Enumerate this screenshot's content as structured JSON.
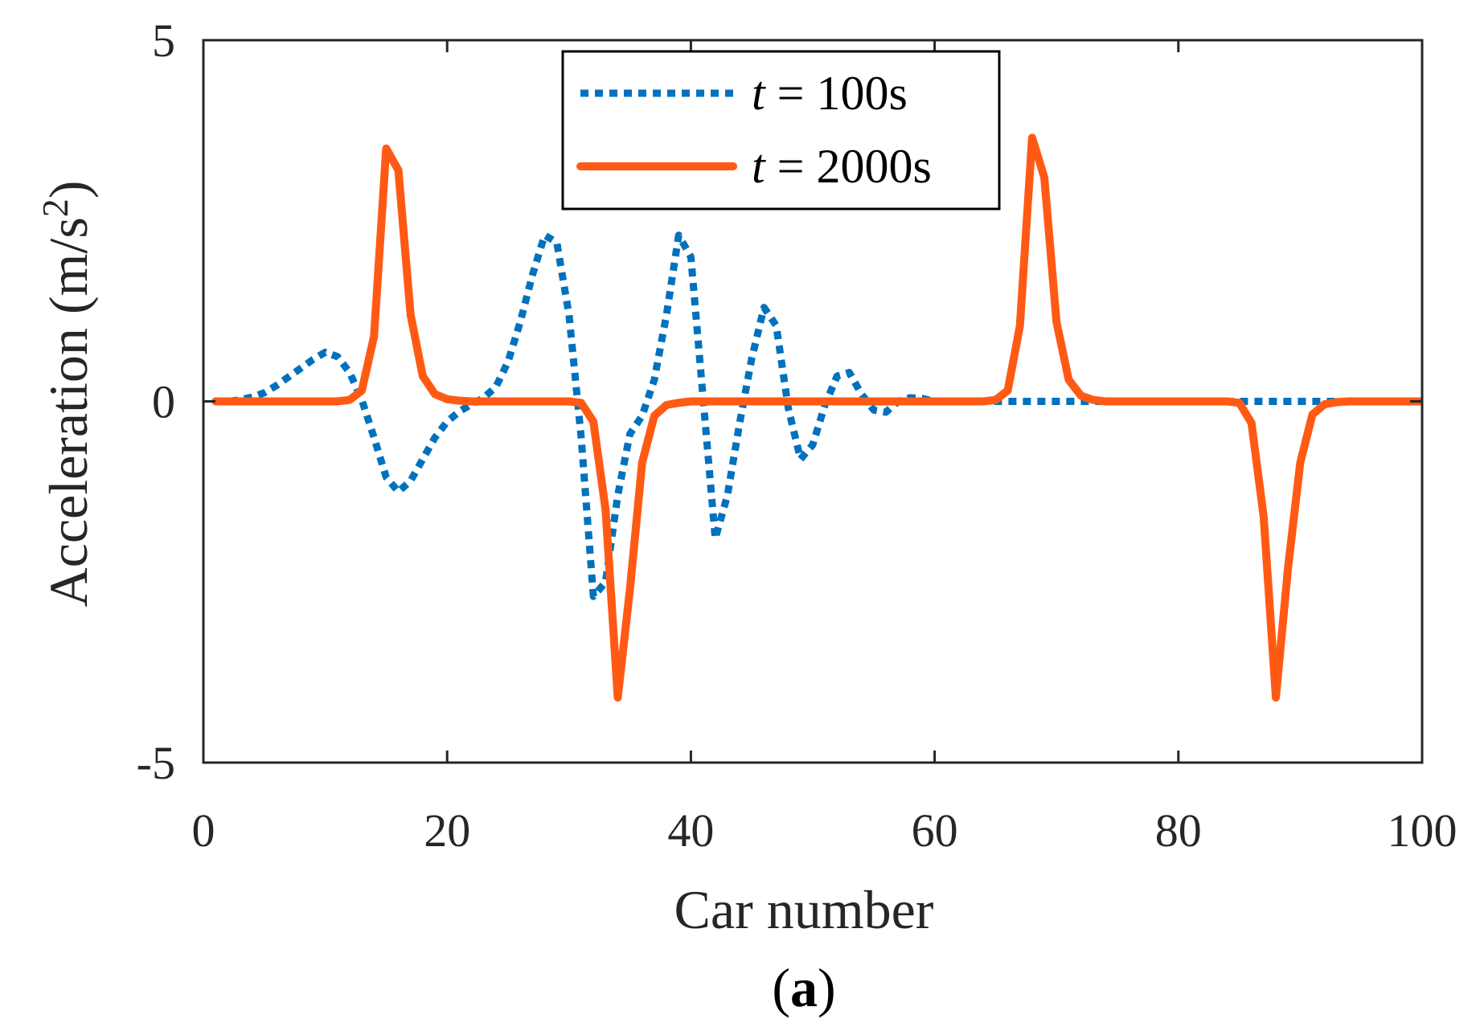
{
  "colors": {
    "series_1": "#0072BD",
    "series_2": "#FF5A14",
    "axis": "#262626"
  },
  "caption": {
    "open": "(",
    "letter": "a",
    "close": ")"
  },
  "chart_data": {
    "type": "line",
    "title": "",
    "xlabel": "Car number",
    "ylabel_main": "Acceleration (m/s",
    "ylabel_sup": "2",
    "ylabel_close": ")",
    "xlim": [
      0,
      100
    ],
    "ylim": [
      -5,
      5
    ],
    "xticks": [
      0,
      20,
      40,
      60,
      80,
      100
    ],
    "xtick_labels": [
      "0",
      "20",
      "40",
      "60",
      "80",
      "100"
    ],
    "yticks": [
      -5,
      0,
      5
    ],
    "ytick_labels": [
      "-5",
      "0",
      "5"
    ],
    "grid": false,
    "legend_position": "top-center",
    "series": [
      {
        "name": "t = 100s",
        "legend_italic": "t",
        "legend_rest": " = 100s",
        "style": "dotted",
        "x": [
          1,
          2,
          3,
          4,
          5,
          6,
          7,
          8,
          9,
          10,
          11,
          12,
          13,
          14,
          15,
          16,
          17,
          18,
          19,
          20,
          21,
          22,
          23,
          24,
          25,
          26,
          27,
          28,
          29,
          30,
          31,
          32,
          33,
          34,
          35,
          36,
          37,
          38,
          39,
          40,
          41,
          42,
          43,
          44,
          45,
          46,
          47,
          48,
          49,
          50,
          51,
          52,
          53,
          54,
          55,
          56,
          57,
          58,
          59,
          60,
          61,
          62,
          63,
          64,
          65,
          66,
          67,
          68,
          69,
          70,
          71,
          72,
          73,
          74,
          75,
          76,
          77,
          78,
          79,
          80,
          81,
          82,
          83,
          84,
          85,
          86,
          87,
          88,
          89,
          90,
          91,
          92,
          93,
          94,
          95,
          96,
          97,
          98,
          99,
          100
        ],
        "y": [
          0,
          0,
          0.02,
          0.06,
          0.12,
          0.22,
          0.34,
          0.46,
          0.58,
          0.68,
          0.62,
          0.4,
          0.02,
          -0.5,
          -1.05,
          -1.25,
          -1.1,
          -0.8,
          -0.5,
          -0.28,
          -0.14,
          -0.04,
          0.05,
          0.2,
          0.55,
          1.1,
          1.75,
          2.3,
          2.2,
          1.2,
          -0.5,
          -2.7,
          -2.5,
          -1.3,
          -0.45,
          -0.2,
          0.3,
          1.2,
          2.3,
          2.0,
          0.05,
          -1.9,
          -1.3,
          -0.3,
          0.6,
          1.3,
          1.05,
          -0.1,
          -0.8,
          -0.6,
          -0.05,
          0.35,
          0.4,
          0.1,
          -0.12,
          -0.15,
          0,
          0.05,
          0.04,
          0,
          0,
          0,
          0,
          0,
          0,
          0,
          0,
          0,
          0,
          0,
          0,
          0,
          0,
          0,
          0,
          0,
          0,
          0,
          0,
          0,
          0,
          0,
          0,
          0,
          0,
          0,
          0,
          0,
          0,
          0,
          0,
          0,
          0,
          0,
          0,
          0,
          0,
          0,
          0,
          0
        ]
      },
      {
        "name": "t = 2000s",
        "legend_italic": "t",
        "legend_rest": " = 2000s",
        "style": "solid",
        "x": [
          1,
          2,
          3,
          4,
          5,
          6,
          7,
          8,
          9,
          10,
          11,
          12,
          13,
          14,
          15,
          16,
          17,
          18,
          19,
          20,
          21,
          22,
          23,
          24,
          25,
          26,
          27,
          28,
          29,
          30,
          31,
          32,
          33,
          34,
          35,
          36,
          37,
          38,
          39,
          40,
          41,
          42,
          43,
          44,
          45,
          46,
          47,
          48,
          49,
          50,
          51,
          52,
          53,
          54,
          55,
          56,
          57,
          58,
          59,
          60,
          61,
          62,
          63,
          64,
          65,
          66,
          67,
          68,
          69,
          70,
          71,
          72,
          73,
          74,
          75,
          76,
          77,
          78,
          79,
          80,
          81,
          82,
          83,
          84,
          85,
          86,
          87,
          88,
          89,
          90,
          91,
          92,
          93,
          94,
          95,
          96,
          97,
          98,
          99,
          100
        ],
        "y": [
          0,
          0,
          0,
          0,
          0,
          0,
          0,
          0,
          0,
          0,
          0,
          0.02,
          0.15,
          0.9,
          3.5,
          3.2,
          1.2,
          0.35,
          0.1,
          0.03,
          0.01,
          0,
          0,
          0,
          0,
          0,
          0,
          0,
          0,
          0,
          -0.02,
          -0.28,
          -1.5,
          -4.1,
          -2.6,
          -0.85,
          -0.2,
          -0.05,
          -0.02,
          0,
          0,
          0,
          0,
          0,
          0,
          0,
          0,
          0,
          0,
          0,
          0,
          0,
          0,
          0,
          0,
          0,
          0,
          0,
          0,
          0,
          0,
          0,
          0,
          0,
          0.02,
          0.15,
          1.05,
          3.65,
          3.1,
          1.1,
          0.3,
          0.08,
          0.02,
          0,
          0,
          0,
          0,
          0,
          0,
          0,
          0,
          0,
          0,
          0,
          -0.02,
          -0.3,
          -1.6,
          -4.1,
          -2.3,
          -0.85,
          -0.18,
          -0.04,
          -0.01,
          0,
          0,
          0,
          0,
          0,
          0,
          0
        ]
      }
    ]
  }
}
